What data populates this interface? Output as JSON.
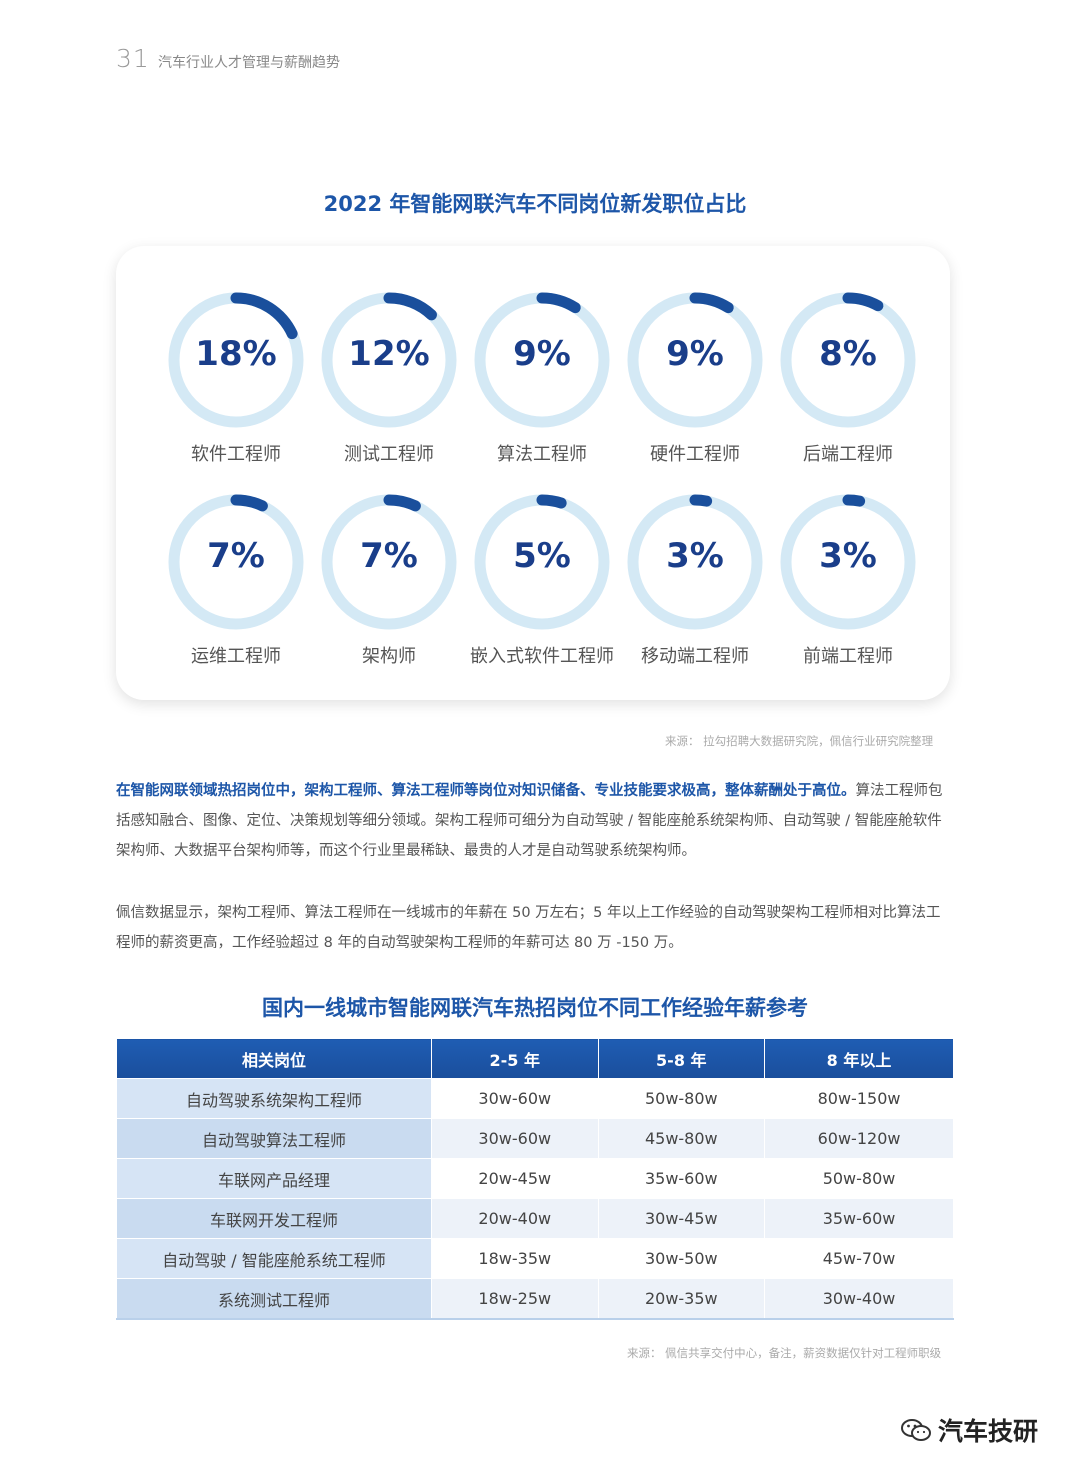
{
  "header": {
    "page_number": "31",
    "doc_title": "汽车行业人才管理与薪酬趋势"
  },
  "chart_section": {
    "title": "2022 年智能网联汽车不同岗位新发职位占比",
    "source": "来源： 拉勾招聘大数据研究院，佩信行业研究院整理"
  },
  "chart_data": {
    "type": "donut",
    "title": "2022 年智能网联汽车不同岗位新发职位占比",
    "categories": [
      "软件工程师",
      "测试工程师",
      "算法工程师",
      "硬件工程师",
      "后端工程师",
      "运维工程师",
      "架构师",
      "嵌入式软件工程师",
      "移动端工程师",
      "前端工程师"
    ],
    "values": [
      18,
      12,
      9,
      9,
      8,
      7,
      7,
      5,
      3,
      3
    ],
    "labels": [
      "18%",
      "12%",
      "9%",
      "9%",
      "8%",
      "7%",
      "7%",
      "5%",
      "3%",
      "3%"
    ],
    "colors": {
      "track": "#d4e9f5",
      "arc": "#1a4f9c"
    }
  },
  "paragraphs": {
    "p1_bold": "在智能网联领域热招岗位中，架构工程师、算法工程师等岗位对知识储备、专业技能要求极高，整体薪酬处于高位。",
    "p1_rest": "算法工程师包括感知融合、图像、定位、决策规划等细分领域。架构工程师可细分为自动驾驶 / 智能座舱系统架构师、自动驾驶 / 智能座舱软件架构师、大数据平台架构师等，而这个行业里最稀缺、最贵的人才是自动驾驶系统架构师。",
    "p2": "佩信数据显示，架构工程师、算法工程师在一线城市的年薪在 50 万左右；5 年以上工作经验的自动驾驶架构工程师相对比算法工程师的薪资更高，工作经验超过 8 年的自动驾驶架构工程师的年薪可达 80 万 -150 万。"
  },
  "table_section": {
    "title": "国内一线城市智能网联汽车热招岗位不同工作经验年薪参考",
    "headers": [
      "相关岗位",
      "2-5 年",
      "5-8 年",
      "8 年以上"
    ],
    "rows": [
      [
        "自动驾驶系统架构工程师",
        "30w-60w",
        "50w-80w",
        "80w-150w"
      ],
      [
        "自动驾驶算法工程师",
        "30w-60w",
        "45w-80w",
        "60w-120w"
      ],
      [
        "车联网产品经理",
        "20w-45w",
        "35w-60w",
        "50w-80w"
      ],
      [
        "车联网开发工程师",
        "20w-40w",
        "30w-45w",
        "35w-60w"
      ],
      [
        "自动驾驶 / 智能座舱系统工程师",
        "18w-35w",
        "30w-50w",
        "45w-70w"
      ],
      [
        "系统测试工程师",
        "18w-25w",
        "20w-35w",
        "30w-40w"
      ]
    ],
    "source": "来源： 佩信共享交付中心，备注，薪资数据仅针对工程师职级"
  },
  "watermark": {
    "text": "汽车技研",
    "icon": "wechat-icon"
  }
}
